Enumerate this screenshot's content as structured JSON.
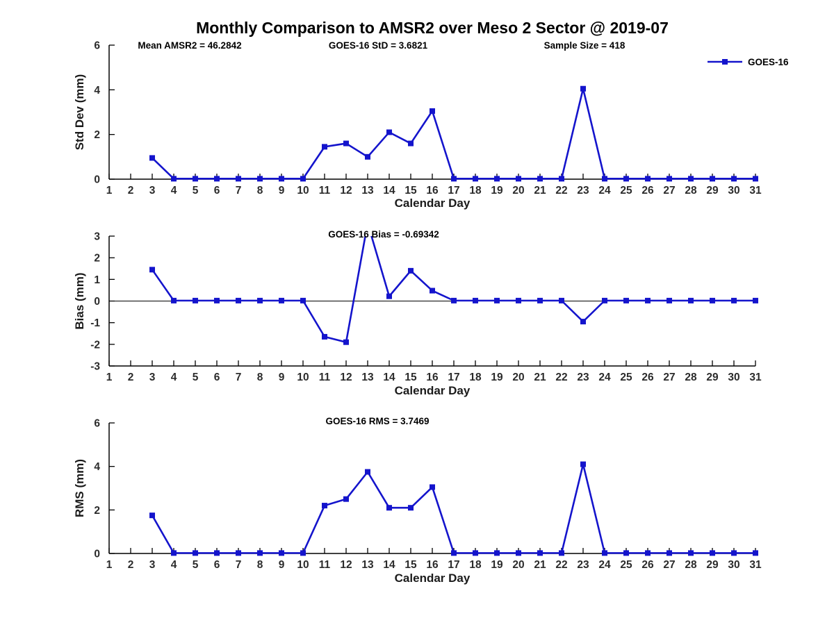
{
  "figure": {
    "title": "Monthly Comparison to AMSR2 over Meso 2 Sector @ 2019-07",
    "background": "#ffffff",
    "line_color": "#1414cc",
    "axis_color": "#000000",
    "legend": {
      "label": "GOES-16"
    }
  },
  "chart_data": [
    {
      "type": "line",
      "name": "std-dev",
      "xlabel": "Calendar Day",
      "ylabel": "Std Dev (mm)",
      "xlim": [
        1,
        31
      ],
      "ylim": [
        0,
        6
      ],
      "xticks": [
        1,
        2,
        3,
        4,
        5,
        6,
        7,
        8,
        9,
        10,
        11,
        12,
        13,
        14,
        15,
        16,
        17,
        18,
        19,
        20,
        21,
        22,
        23,
        24,
        25,
        26,
        27,
        28,
        29,
        30,
        31
      ],
      "yticks": [
        0,
        2,
        4,
        6
      ],
      "grid": false,
      "zero_line": false,
      "legend_position": "top-right-outside",
      "title_annotations": [
        "Mean AMSR2 = 46.2842",
        "GOES-16 StD = 3.6821",
        "Sample Size = 418"
      ],
      "series": [
        {
          "name": "GOES-16",
          "x": [
            3,
            4,
            5,
            6,
            7,
            8,
            9,
            10,
            11,
            12,
            13,
            14,
            15,
            16,
            17,
            18,
            19,
            20,
            21,
            22,
            23,
            24,
            25,
            26,
            27,
            28,
            29,
            30,
            31
          ],
          "y": [
            0.95,
            0.02,
            0.02,
            0.02,
            0.02,
            0.02,
            0.02,
            0.02,
            1.45,
            1.6,
            1.0,
            2.1,
            1.6,
            3.05,
            0.02,
            0.02,
            0.02,
            0.02,
            0.02,
            0.02,
            4.05,
            0.02,
            0.02,
            0.02,
            0.02,
            0.02,
            0.02,
            0.02,
            0.02
          ]
        }
      ]
    },
    {
      "type": "line",
      "name": "bias",
      "xlabel": "Calendar Day",
      "ylabel": "Bias (mm)",
      "xlim": [
        1,
        31
      ],
      "ylim": [
        -3,
        3
      ],
      "xticks": [
        1,
        2,
        3,
        4,
        5,
        6,
        7,
        8,
        9,
        10,
        11,
        12,
        13,
        14,
        15,
        16,
        17,
        18,
        19,
        20,
        21,
        22,
        23,
        24,
        25,
        26,
        27,
        28,
        29,
        30,
        31
      ],
      "yticks": [
        -3,
        -2,
        -1,
        0,
        1,
        2,
        3
      ],
      "grid": false,
      "zero_line": true,
      "annotation": "GOES-16 Bias = -0.69342",
      "series": [
        {
          "name": "GOES-16",
          "x": [
            3,
            4,
            5,
            6,
            7,
            8,
            9,
            10,
            11,
            12,
            13,
            14,
            15,
            16,
            17,
            18,
            19,
            20,
            21,
            22,
            23,
            24,
            25,
            26,
            27,
            28,
            29,
            30,
            31
          ],
          "y": [
            1.45,
            0.02,
            0.02,
            0.02,
            0.02,
            0.02,
            0.02,
            0.02,
            -1.65,
            -1.9,
            3.6,
            0.22,
            1.4,
            0.48,
            0.02,
            0.02,
            0.02,
            0.02,
            0.02,
            0.02,
            -0.95,
            0.02,
            0.02,
            0.02,
            0.02,
            0.02,
            0.02,
            0.02,
            0.02
          ]
        }
      ]
    },
    {
      "type": "line",
      "name": "rms",
      "xlabel": "Calendar Day",
      "ylabel": "RMS (mm)",
      "xlim": [
        1,
        31
      ],
      "ylim": [
        0,
        6
      ],
      "xticks": [
        1,
        2,
        3,
        4,
        5,
        6,
        7,
        8,
        9,
        10,
        11,
        12,
        13,
        14,
        15,
        16,
        17,
        18,
        19,
        20,
        21,
        22,
        23,
        24,
        25,
        26,
        27,
        28,
        29,
        30,
        31
      ],
      "yticks": [
        0,
        2,
        4,
        6
      ],
      "grid": false,
      "zero_line": false,
      "annotation": "GOES-16 RMS = 3.7469",
      "series": [
        {
          "name": "GOES-16",
          "x": [
            3,
            4,
            5,
            6,
            7,
            8,
            9,
            10,
            11,
            12,
            13,
            14,
            15,
            16,
            17,
            18,
            19,
            20,
            21,
            22,
            23,
            24,
            25,
            26,
            27,
            28,
            29,
            30,
            31
          ],
          "y": [
            1.75,
            0.02,
            0.02,
            0.02,
            0.02,
            0.02,
            0.02,
            0.02,
            2.2,
            2.5,
            3.75,
            2.1,
            2.1,
            3.05,
            0.02,
            0.02,
            0.02,
            0.02,
            0.02,
            0.02,
            4.1,
            0.02,
            0.02,
            0.02,
            0.02,
            0.02,
            0.02,
            0.02,
            0.02
          ]
        }
      ]
    }
  ]
}
